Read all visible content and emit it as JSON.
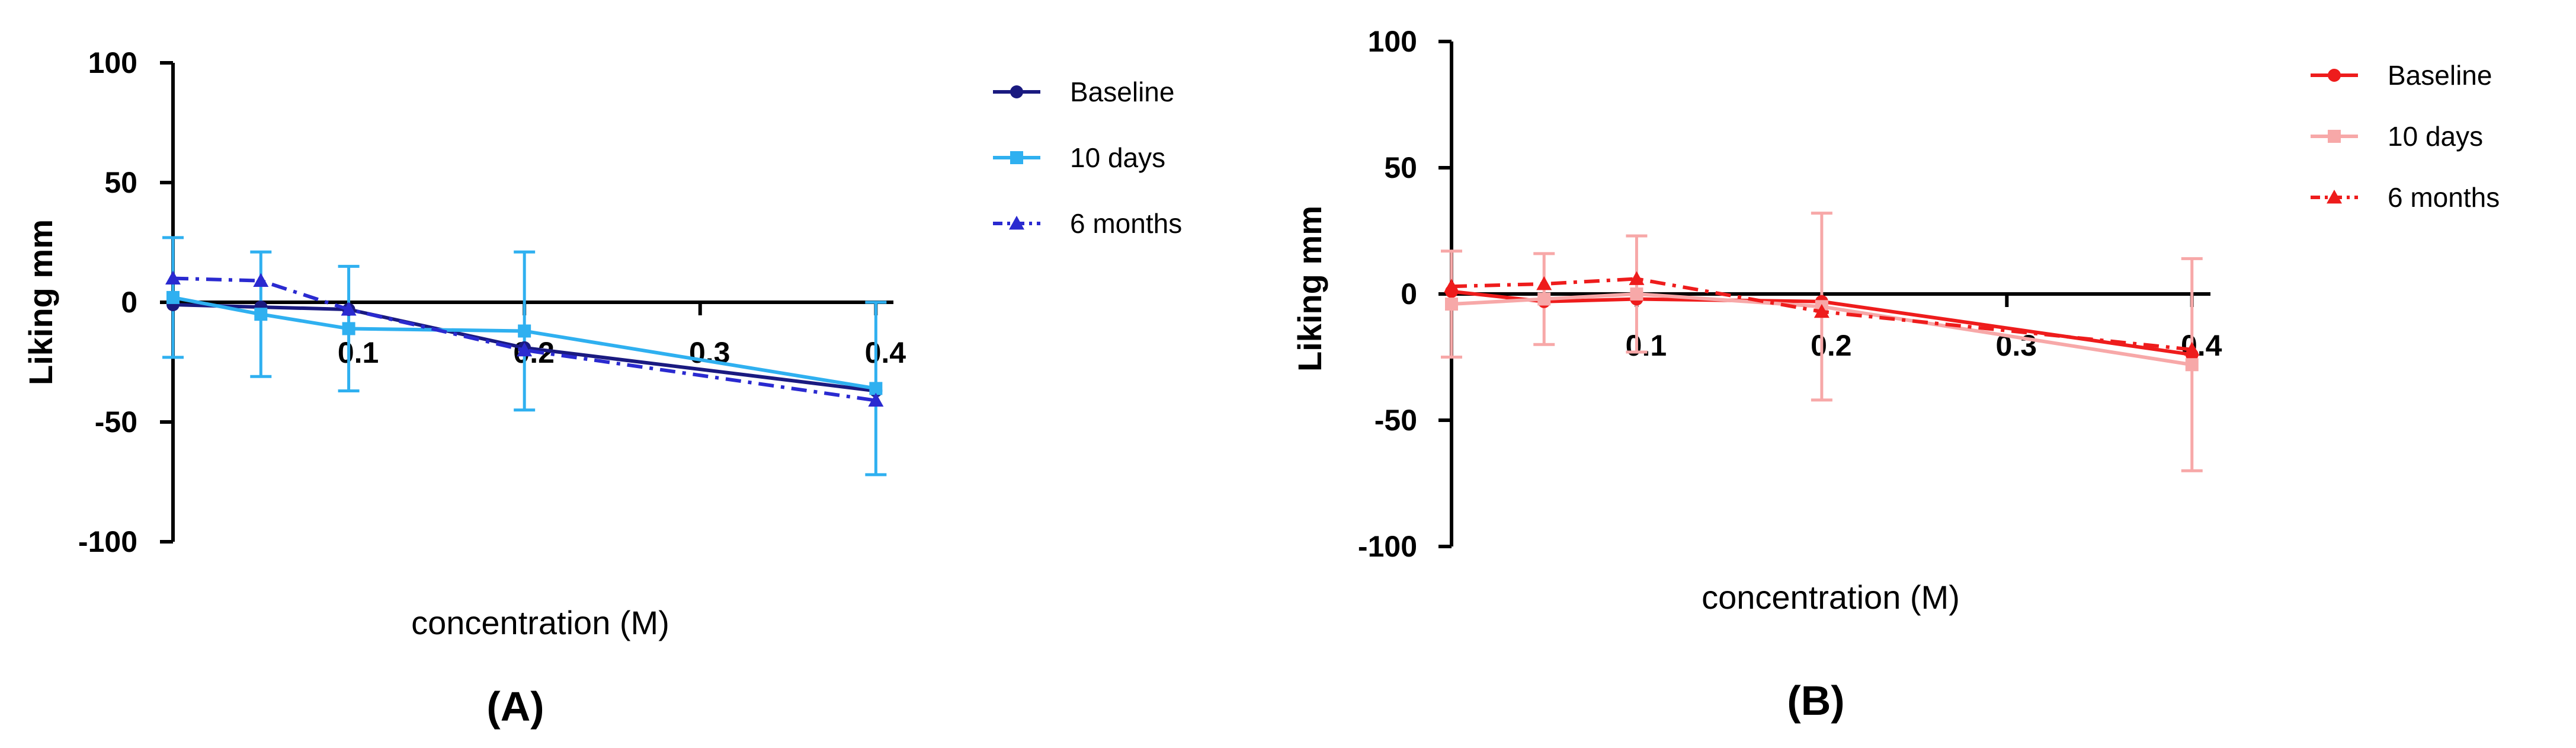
{
  "chart_data": [
    {
      "type": "line",
      "panel_label": "(A)",
      "xlabel": "concentration (M)",
      "ylabel": "Liking mm",
      "xlim": [
        0,
        0.41
      ],
      "ylim": [
        -100,
        100
      ],
      "x_ticks": [
        0.1,
        0.2,
        0.3,
        0.4
      ],
      "x_tick_labels": [
        "0.1",
        "0.2",
        "0.3",
        "0.4"
      ],
      "y_ticks": [
        100,
        50,
        0,
        -50,
        -100
      ],
      "y_tick_labels": [
        "100",
        "50",
        "0",
        "-50",
        "-100"
      ],
      "legend_position": "right",
      "colors": {
        "axis": "#000000"
      },
      "series": [
        {
          "name": "Baseline",
          "color": "#1a1a80",
          "marker": "circle",
          "dash": "solid",
          "x": [
            0,
            0.05,
            0.1,
            0.2,
            0.4
          ],
          "y": [
            -1,
            -2,
            -3,
            -19,
            -37
          ]
        },
        {
          "name": "10 days",
          "color": "#2fb0f0",
          "marker": "square",
          "dash": "solid",
          "x": [
            0,
            0.05,
            0.1,
            0.2,
            0.4
          ],
          "y": [
            2,
            -5,
            -11,
            -12,
            -36
          ],
          "error": [
            25,
            26,
            26,
            33,
            36
          ]
        },
        {
          "name": "6 months",
          "color": "#2a2ad0",
          "marker": "triangle",
          "dash": "dashdot",
          "x": [
            0,
            0.05,
            0.1,
            0.2,
            0.4
          ],
          "y": [
            10,
            9,
            -3,
            -20,
            -41
          ]
        }
      ]
    },
    {
      "type": "line",
      "panel_label": "(B)",
      "xlabel": "concentration (M)",
      "ylabel": "Liking mm",
      "xlim": [
        0,
        0.41
      ],
      "ylim": [
        -100,
        100
      ],
      "x_ticks": [
        0.1,
        0.2,
        0.3,
        0.4
      ],
      "x_tick_labels": [
        "0.1",
        "0.2",
        "0.3",
        "0.4"
      ],
      "y_ticks": [
        100,
        50,
        0,
        -50,
        -100
      ],
      "y_tick_labels": [
        "100",
        "50",
        "0",
        "-50",
        "-100"
      ],
      "legend_position": "right",
      "colors": {
        "axis": "#000000"
      },
      "series": [
        {
          "name": "Baseline",
          "color": "#ee1c1c",
          "marker": "circle",
          "dash": "solid",
          "x": [
            0,
            0.05,
            0.1,
            0.2,
            0.4
          ],
          "y": [
            1,
            -3,
            -2,
            -3,
            -24
          ]
        },
        {
          "name": "10 days",
          "color": "#f7a8a8",
          "marker": "square",
          "dash": "solid",
          "x": [
            0,
            0.05,
            0.1,
            0.2,
            0.4
          ],
          "y": [
            -4,
            -2,
            0,
            -5,
            -28
          ],
          "error": [
            21,
            18,
            23,
            37,
            42
          ]
        },
        {
          "name": "6 months",
          "color": "#ee1c1c",
          "marker": "triangle",
          "dash": "dashdot",
          "x": [
            0,
            0.05,
            0.1,
            0.2,
            0.4
          ],
          "y": [
            3,
            4,
            6,
            -7,
            -22
          ]
        }
      ]
    }
  ]
}
